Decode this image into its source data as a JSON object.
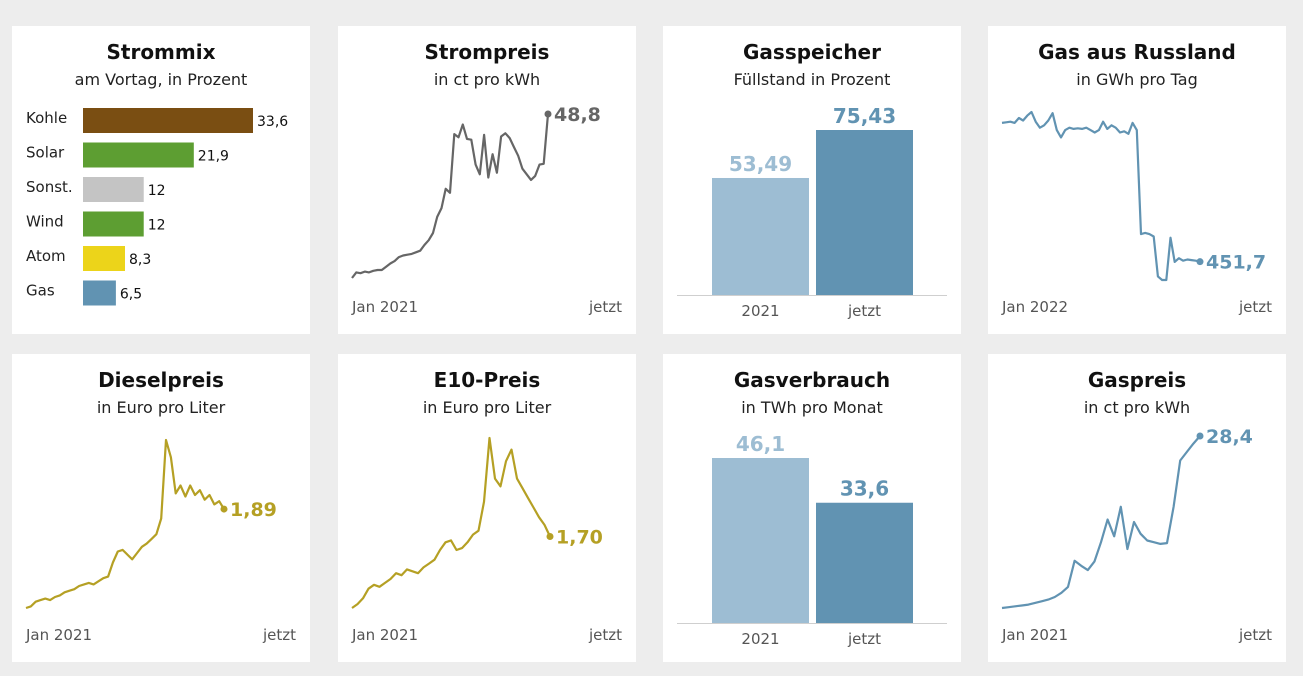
{
  "charts": [
    {
      "title": "Strommix",
      "subtitle": "am Vortag, in Prozent"
    },
    {
      "title": "Strompreis",
      "subtitle": "in ct pro kWh",
      "start_label": "Jan 2021",
      "end_label": "jetzt"
    },
    {
      "title": "Gasspeicher",
      "subtitle": "Füllstand in Prozent"
    },
    {
      "title": "Gas aus Russland",
      "subtitle": "in GWh pro Tag",
      "start_label": "Jan 2022",
      "end_label": "jetzt"
    },
    {
      "title": "Dieselpreis",
      "subtitle": "in Euro pro Liter",
      "start_label": "Jan 2021",
      "end_label": "jetzt"
    },
    {
      "title": "E10-Preis",
      "subtitle": "in Euro pro Liter",
      "start_label": "Jan 2021",
      "end_label": "jetzt"
    },
    {
      "title": "Gasverbrauch",
      "subtitle": "in TWh pro Monat"
    },
    {
      "title": "Gaspreis",
      "subtitle": "in ct pro kWh",
      "start_label": "Jan 2021",
      "end_label": "jetzt"
    }
  ],
  "chart_data": [
    {
      "type": "bar",
      "orientation": "horizontal",
      "title": "Strommix",
      "subtitle": "am Vortag, in Prozent",
      "categories": [
        "Kohle",
        "Solar",
        "Sonst.",
        "Wind",
        "Atom",
        "Gas"
      ],
      "values": [
        33.6,
        21.9,
        12,
        12,
        8.3,
        6.5
      ],
      "value_labels": [
        "33,6",
        "21,9",
        "12",
        "12",
        "8,3",
        "6,5"
      ],
      "colors": [
        "#7a4e12",
        "#5d9e32",
        "#c4c4c4",
        "#5d9e32",
        "#ecd41a",
        "#6193b2"
      ]
    },
    {
      "type": "line",
      "title": "Strompreis",
      "subtitle": "in ct pro kWh",
      "color": "#666666",
      "x_start": "Jan 2021",
      "x_end": "jetzt",
      "last_value": 48.8,
      "last_label": "48,8",
      "values": [
        28.4,
        29.1,
        29.0,
        29.2,
        29.1,
        29.3,
        29.4,
        29.4,
        29.8,
        30.2,
        30.5,
        31.0,
        31.2,
        31.3,
        31.4,
        31.6,
        31.8,
        32.5,
        33.1,
        34.0,
        36.0,
        37.1,
        39.5,
        39.0,
        46.3,
        45.9,
        47.5,
        45.7,
        45.6,
        42.5,
        41.3,
        46.2,
        40.9,
        43.8,
        41.5,
        46.0,
        46.4,
        45.8,
        44.7,
        43.6,
        42.0,
        41.3,
        40.6,
        41.1,
        42.5,
        42.6,
        48.8
      ]
    },
    {
      "type": "bar",
      "title": "Gasspeicher",
      "subtitle": "Füllstand in Prozent",
      "categories": [
        "2021",
        "jetzt"
      ],
      "values": [
        53.49,
        75.43
      ],
      "value_labels": [
        "53,49",
        "75,43"
      ],
      "colors": [
        "#9dbdd3",
        "#6193b2"
      ]
    },
    {
      "type": "line",
      "title": "Gas aus Russland",
      "subtitle": "in GWh pro Tag",
      "color": "#6193b2",
      "x_start": "Jan 2022",
      "x_end": "jetzt",
      "last_value": 451.7,
      "last_label": "451,7",
      "values": [
        1600,
        1605,
        1610,
        1600,
        1640,
        1620,
        1660,
        1690,
        1610,
        1560,
        1580,
        1620,
        1680,
        1540,
        1480,
        1540,
        1560,
        1550,
        1555,
        1550,
        1560,
        1540,
        1520,
        1540,
        1610,
        1550,
        1580,
        1560,
        1520,
        1530,
        1510,
        1600,
        1540,
        680,
        690,
        680,
        660,
        330,
        300,
        300,
        650,
        450,
        480,
        460,
        470,
        465,
        460,
        451.7
      ]
    },
    {
      "type": "line",
      "title": "Dieselpreis",
      "subtitle": "in Euro pro Liter",
      "color": "#b5a024",
      "x_start": "Jan 2021",
      "x_end": "jetzt",
      "last_value": 1.89,
      "last_label": "1,89",
      "values": [
        1.26,
        1.27,
        1.3,
        1.31,
        1.32,
        1.31,
        1.33,
        1.34,
        1.36,
        1.37,
        1.38,
        1.4,
        1.41,
        1.42,
        1.41,
        1.43,
        1.45,
        1.46,
        1.55,
        1.62,
        1.63,
        1.6,
        1.57,
        1.61,
        1.65,
        1.67,
        1.7,
        1.73,
        1.83,
        2.33,
        2.22,
        1.99,
        2.04,
        1.97,
        2.04,
        1.98,
        2.01,
        1.95,
        1.98,
        1.92,
        1.94,
        1.89
      ]
    },
    {
      "type": "line",
      "title": "E10-Preis",
      "subtitle": "in Euro pro Liter",
      "color": "#b5a024",
      "x_start": "Jan 2021",
      "x_end": "jetzt",
      "last_value": 1.7,
      "last_label": "1,70",
      "values": [
        1.33,
        1.35,
        1.38,
        1.43,
        1.45,
        1.44,
        1.46,
        1.48,
        1.51,
        1.5,
        1.53,
        1.52,
        1.51,
        1.54,
        1.56,
        1.58,
        1.63,
        1.67,
        1.68,
        1.63,
        1.64,
        1.67,
        1.71,
        1.73,
        1.88,
        2.21,
        2.0,
        1.96,
        2.09,
        2.15,
        2.0,
        1.95,
        1.9,
        1.85,
        1.8,
        1.76,
        1.7
      ]
    },
    {
      "type": "bar",
      "title": "Gasverbrauch",
      "subtitle": "in TWh pro Monat",
      "categories": [
        "2021",
        "jetzt"
      ],
      "values": [
        46.1,
        33.6
      ],
      "value_labels": [
        "46,1",
        "33,6"
      ],
      "colors": [
        "#9dbdd3",
        "#6193b2"
      ]
    },
    {
      "type": "line",
      "title": "Gaspreis",
      "subtitle": "in ct pro kWh",
      "color": "#6193b2",
      "x_start": "Jan 2021",
      "x_end": "jetzt",
      "last_value": 28.4,
      "last_label": "28,4",
      "values": [
        8.0,
        8.1,
        8.2,
        8.3,
        8.4,
        8.6,
        8.8,
        9.0,
        9.3,
        9.8,
        10.5,
        13.6,
        13.0,
        12.5,
        13.5,
        15.8,
        18.5,
        16.5,
        20.0,
        15.0,
        18.2,
        16.8,
        16.0,
        15.8,
        15.6,
        15.7,
        20.0,
        25.5,
        26.5,
        27.5,
        28.4
      ]
    }
  ]
}
